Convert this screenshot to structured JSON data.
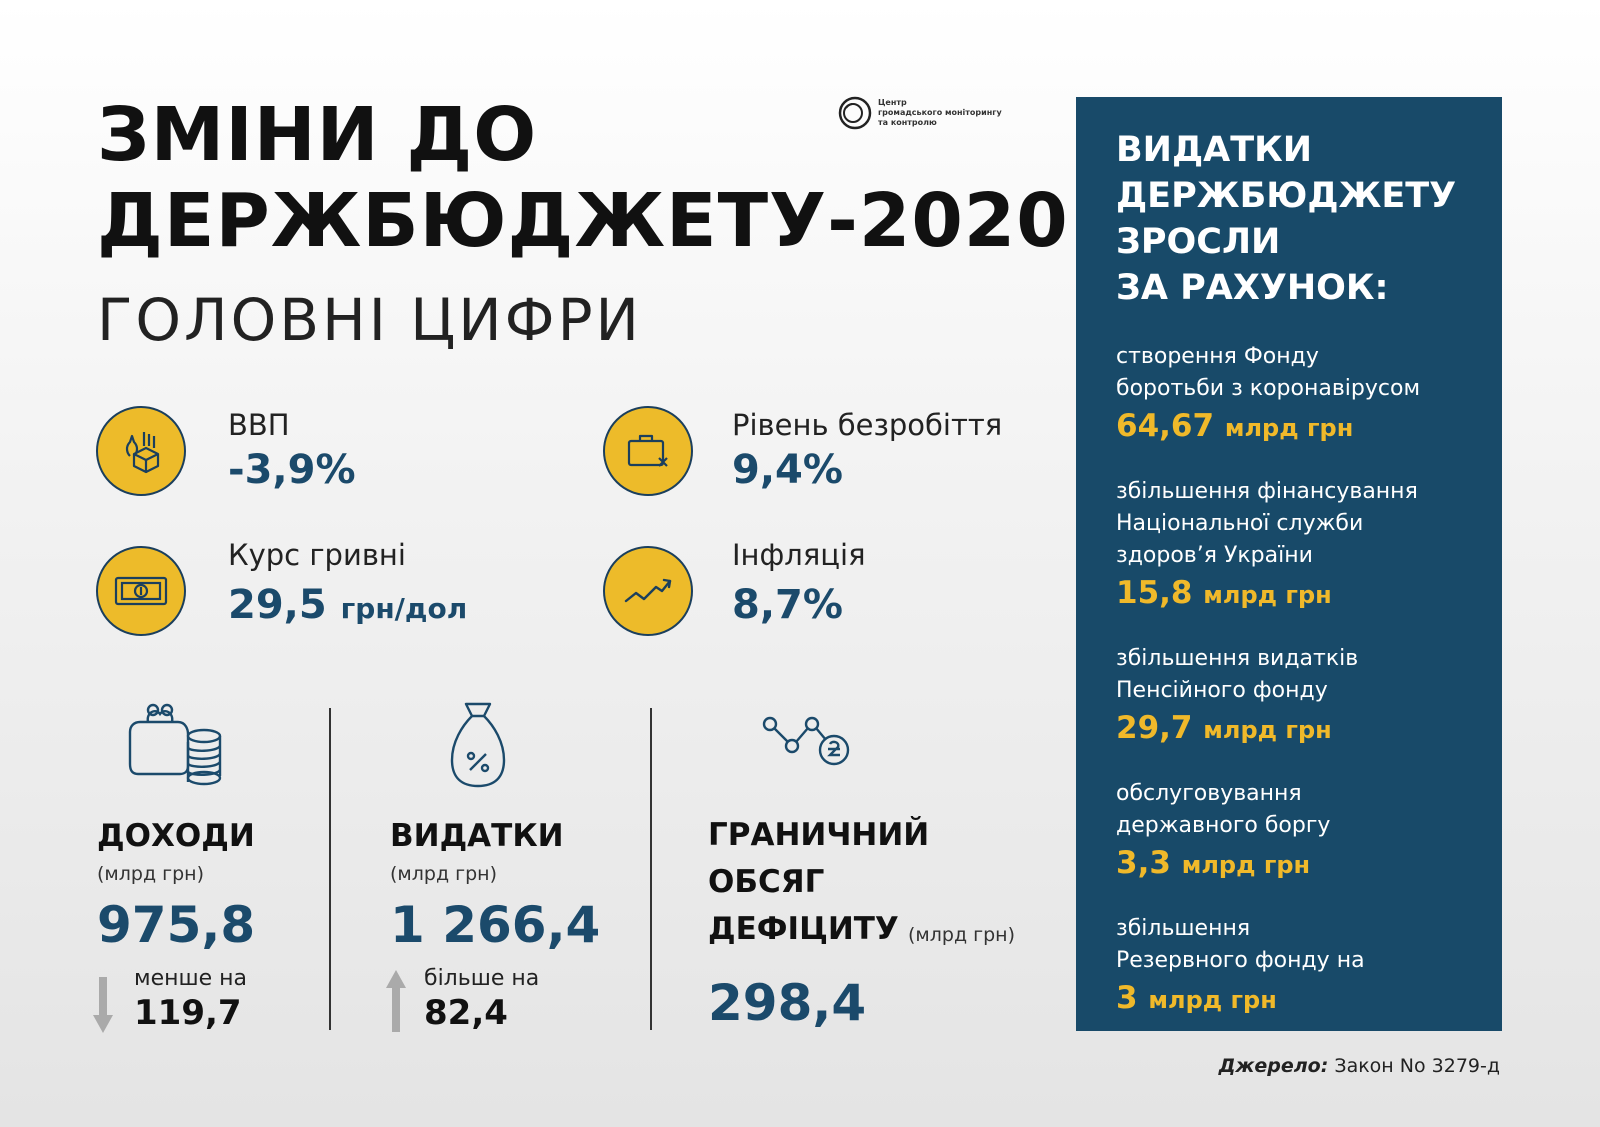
{
  "title": {
    "line1": "ЗМІНИ ДО",
    "line2": "ДЕРЖБЮДЖЕТУ-2020"
  },
  "subtitle": "ГОЛОВНІ ЦИФРИ",
  "logo": {
    "line1": "Центр",
    "line2": "громадського моніторингу",
    "line2b": "та контролю"
  },
  "metrics": [
    {
      "label": "ВВП",
      "value": "-3,9%",
      "unit": "",
      "icon": "gdp-icon"
    },
    {
      "label": "Рівень безробіття",
      "value": "9,4%",
      "unit": "",
      "icon": "unemployment-briefcase-icon"
    },
    {
      "label": "Курс гривні",
      "value": "29,5",
      "unit": "грн/дол",
      "icon": "banknote-icon"
    },
    {
      "label": "Інфляція",
      "value": "8,7%",
      "unit": "",
      "icon": "trend-up-icon"
    }
  ],
  "blocks": {
    "income": {
      "head": "ДОХОДИ",
      "unit": "(млрд грн)",
      "value": "975,8",
      "delta_label": "менше на",
      "delta_value": "119,7",
      "direction": "down"
    },
    "expenses": {
      "head": "ВИДАТКИ",
      "unit": "(млрд грн)",
      "value": "1 266,4",
      "delta_label": "більше на",
      "delta_value": "82,4",
      "direction": "up"
    },
    "deficit": {
      "line1": "ГРАНИЧНИЙ",
      "line2": "ОБСЯГ",
      "line3": "ДЕФІЦИТУ",
      "unit": "(млрд грн)",
      "value": "298,4"
    }
  },
  "panel": {
    "title": [
      "ВИДАТКИ",
      "ДЕРЖБЮДЖЕТУ",
      "ЗРОСЛИ",
      "ЗА РАХУНОК:"
    ],
    "items": [
      {
        "desc": [
          "створення Фонду",
          "боротьби з коронавірусом"
        ],
        "amount": "64,67",
        "unit": "млрд грн"
      },
      {
        "desc": [
          "збільшення фінансування",
          "Національної служби",
          "здоров’я України"
        ],
        "amount": "15,8",
        "unit": "млрд грн"
      },
      {
        "desc": [
          "збільшення видатків",
          "Пенсійного фонду"
        ],
        "amount": "29,7",
        "unit": "млрд грн"
      },
      {
        "desc": [
          "обслуговування",
          "державного боргу"
        ],
        "amount": "3,3",
        "unit": "млрд грн"
      },
      {
        "desc": [
          "збільшення",
          "Резервного фонду на"
        ],
        "amount": "3",
        "unit": "млрд грн"
      }
    ]
  },
  "source": {
    "label": "Джерело:",
    "text": " Закон No 3279-д"
  },
  "colors": {
    "navy": "#184a69",
    "gold": "#edbb2a",
    "value_blue": "#1b4a6b",
    "panel_amount": "#f0b92a"
  }
}
